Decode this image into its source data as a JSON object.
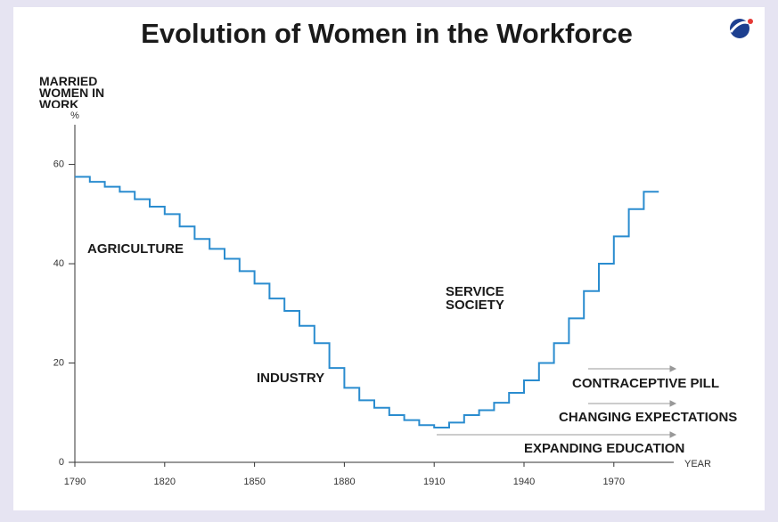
{
  "chart_data": {
    "type": "step",
    "title": "Evolution of Women in the Workforce",
    "y_label": "MARRIED WOMEN IN WORK",
    "y_unit": "%",
    "x_label": "YEAR",
    "annotations": [
      "AGRICULTURE",
      "INDUSTRY",
      "SERVICE SOCIETY",
      "CONTRACEPTIVE PILL",
      "CHANGING EXPECTATIONS",
      "EXPANDING EDUCATION"
    ],
    "x": [
      1790,
      1795,
      1800,
      1805,
      1810,
      1815,
      1820,
      1825,
      1830,
      1835,
      1840,
      1845,
      1850,
      1855,
      1860,
      1865,
      1870,
      1875,
      1880,
      1885,
      1890,
      1895,
      1900,
      1905,
      1910,
      1915,
      1920,
      1925,
      1930,
      1935,
      1940,
      1945,
      1950,
      1955,
      1960,
      1965,
      1970,
      1975,
      1980
    ],
    "values": [
      57.5,
      56.5,
      55.5,
      54.5,
      53,
      51.5,
      50,
      47.5,
      45,
      43,
      41,
      38.5,
      36,
      33,
      30.5,
      27.5,
      24,
      19,
      15,
      12.5,
      11,
      9.5,
      8.5,
      7.5,
      7,
      8,
      9.5,
      10.5,
      12,
      14,
      16.5,
      20,
      24,
      29,
      34.5,
      40,
      45.5,
      51,
      54.5
    ],
    "color": "#2a8ccf",
    "xlim": [
      1790,
      1990
    ],
    "xticks": [
      1790,
      1820,
      1850,
      1880,
      1910,
      1940,
      1970
    ],
    "ylim": [
      0,
      68
    ],
    "yticks": [
      0,
      20,
      40,
      60
    ]
  }
}
